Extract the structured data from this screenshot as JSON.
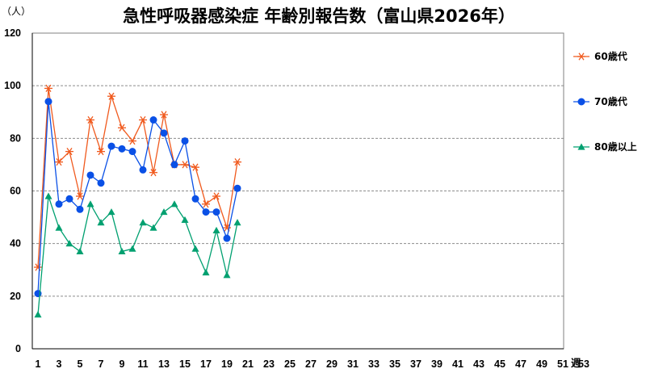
{
  "chart_data": {
    "type": "line",
    "title": "急性呼吸器感染症 年齢別報告数（富山県2026年）",
    "ylabel": "（人）",
    "xlabel": "週",
    "ylim": [
      0,
      120
    ],
    "yticks": [
      0,
      20,
      40,
      60,
      80,
      100,
      120
    ],
    "xlim": [
      1,
      53
    ],
    "xticks": [
      1,
      3,
      5,
      7,
      9,
      11,
      13,
      15,
      17,
      19,
      21,
      23,
      25,
      27,
      29,
      31,
      33,
      35,
      37,
      39,
      41,
      43,
      45,
      47,
      49,
      51,
      53
    ],
    "grid": "horizontal dashed",
    "legend_position": "right",
    "x": [
      1,
      2,
      3,
      4,
      5,
      6,
      7,
      8,
      9,
      10,
      11,
      12,
      13,
      14,
      15,
      16,
      17,
      18,
      19,
      20
    ],
    "series": [
      {
        "name": "60歳代",
        "marker": "asterisk",
        "color": "#F05A1E",
        "values": [
          31,
          99,
          71,
          75,
          58,
          87,
          75,
          96,
          84,
          79,
          87,
          67,
          89,
          70,
          70,
          69,
          55,
          58,
          46,
          71
        ]
      },
      {
        "name": "70歳代",
        "marker": "circle",
        "color": "#0A50E6",
        "values": [
          21,
          94,
          55,
          57,
          53,
          66,
          63,
          77,
          76,
          75,
          68,
          87,
          82,
          70,
          79,
          57,
          52,
          52,
          42,
          61
        ]
      },
      {
        "name": "80歳以上",
        "marker": "triangle",
        "color": "#00A070",
        "values": [
          13,
          58,
          46,
          40,
          37,
          55,
          48,
          52,
          37,
          38,
          48,
          46,
          52,
          55,
          49,
          38,
          29,
          45,
          28,
          48
        ]
      }
    ]
  }
}
